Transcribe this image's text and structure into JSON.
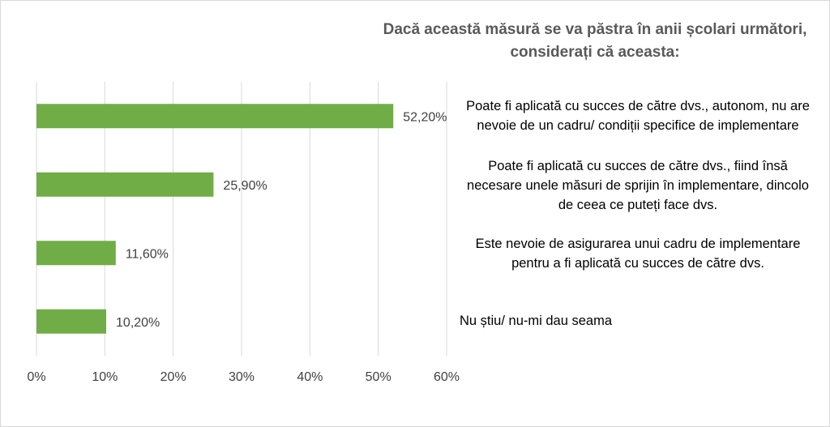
{
  "chart_data": {
    "type": "bar",
    "orientation": "horizontal",
    "title": [
      "Dacă această măsură se va păstra în anii școlari următori,",
      "considerați că aceasta:"
    ],
    "categories": [
      [
        "Poate fi aplicată cu succes de către dvs., autonom, nu are",
        "nevoie de un cadru/ condiții specifice de implementare"
      ],
      [
        "Poate fi aplicată cu succes de către dvs., fiind însă",
        "necesare unele măsuri de sprijin în implementare, dincolo",
        "de ceea ce puteți face dvs."
      ],
      [
        "Este nevoie de asigurarea unui cadru de implementare",
        "pentru a fi aplicată cu succes de către dvs."
      ],
      [
        "Nu știu/ nu-mi dau seama"
      ]
    ],
    "values": [
      52.2,
      25.9,
      11.6,
      10.2
    ],
    "data_labels": [
      "52,20%",
      "25,90%",
      "11,60%",
      "10,20%"
    ],
    "x_ticks": [
      "0%",
      "10%",
      "20%",
      "30%",
      "40%",
      "50%",
      "60%"
    ],
    "xlim": [
      0,
      60
    ],
    "grid": true,
    "bar_color": "#70AD47",
    "grid_color": "#d9d9d9"
  }
}
